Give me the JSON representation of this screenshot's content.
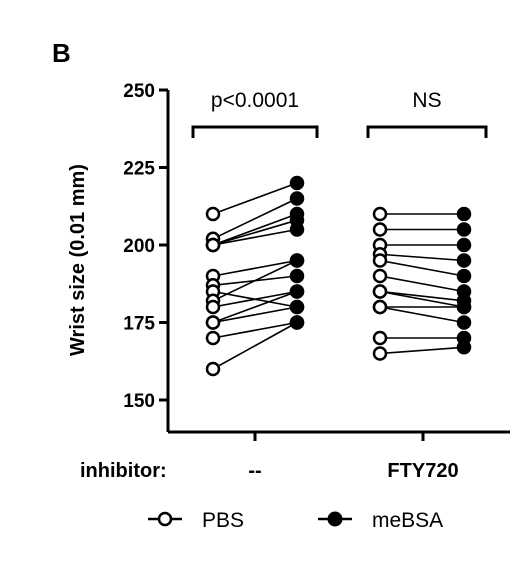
{
  "panel_label": "B",
  "chart_data": {
    "type": "scatter",
    "ylabel": "Wrist size (0.01 mm)",
    "ylim": [
      150,
      250
    ],
    "yticks": [
      150,
      175,
      200,
      225,
      250
    ],
    "x_row_label": "inhibitor:",
    "groups": [
      {
        "label": "--",
        "annotation": "p<0.0001",
        "pairs": [
          {
            "PBS": 210,
            "meBSA": 220
          },
          {
            "PBS": 202,
            "meBSA": 215
          },
          {
            "PBS": 200,
            "meBSA": 210
          },
          {
            "PBS": 200,
            "meBSA": 208
          },
          {
            "PBS": 200,
            "meBSA": 205
          },
          {
            "PBS": 190,
            "meBSA": 195
          },
          {
            "PBS": 187,
            "meBSA": 190
          },
          {
            "PBS": 185,
            "meBSA": 180
          },
          {
            "PBS": 182,
            "meBSA": 195
          },
          {
            "PBS": 180,
            "meBSA": 185
          },
          {
            "PBS": 175,
            "meBSA": 180
          },
          {
            "PBS": 175,
            "meBSA": 185
          },
          {
            "PBS": 170,
            "meBSA": 175
          },
          {
            "PBS": 160,
            "meBSA": 175
          }
        ]
      },
      {
        "label": "FTY720",
        "annotation": "NS",
        "pairs": [
          {
            "PBS": 210,
            "meBSA": 210
          },
          {
            "PBS": 205,
            "meBSA": 205
          },
          {
            "PBS": 200,
            "meBSA": 200
          },
          {
            "PBS": 197,
            "meBSA": 195
          },
          {
            "PBS": 195,
            "meBSA": 190
          },
          {
            "PBS": 190,
            "meBSA": 185
          },
          {
            "PBS": 185,
            "meBSA": 182
          },
          {
            "PBS": 185,
            "meBSA": 180
          },
          {
            "PBS": 180,
            "meBSA": 180
          },
          {
            "PBS": 180,
            "meBSA": 175
          },
          {
            "PBS": 170,
            "meBSA": 170
          },
          {
            "PBS": 165,
            "meBSA": 167
          }
        ]
      }
    ],
    "legend": {
      "position": "bottom",
      "items": [
        {
          "name": "PBS",
          "marker": "open-circle"
        },
        {
          "name": "meBSA",
          "marker": "filled-circle"
        }
      ]
    },
    "colors": {
      "ink": "#000000",
      "background": "#ffffff"
    }
  }
}
